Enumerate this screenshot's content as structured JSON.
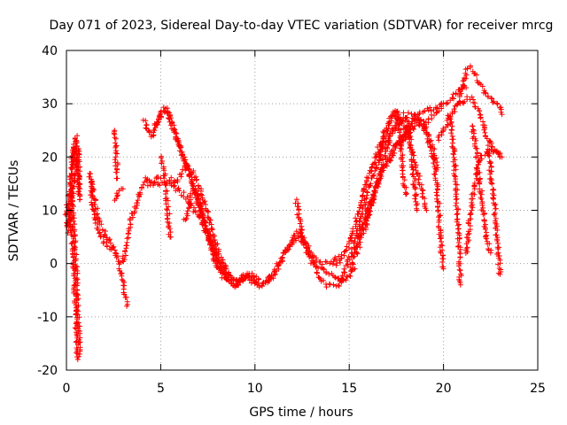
{
  "chart_data": {
    "type": "scatter",
    "title": "Day 071 of 2023, Sidereal Day-to-day VTEC variation (SDTVAR) for receiver mrcg",
    "xlabel": "GPS time / hours",
    "ylabel": "SDTVAR / TECUs",
    "xlim": [
      0,
      25
    ],
    "ylim": [
      -20,
      40
    ],
    "xticks": [
      0,
      5,
      10,
      15,
      20,
      25
    ],
    "yticks": [
      -20,
      -10,
      0,
      10,
      20,
      30,
      40
    ],
    "grid": true,
    "marker": "+",
    "color": "#ff0000",
    "tracks": [
      [
        [
          0.0,
          7
        ],
        [
          0.1,
          9
        ],
        [
          0.2,
          12
        ],
        [
          0.3,
          17
        ],
        [
          0.4,
          21
        ],
        [
          0.5,
          24
        ],
        [
          0.55,
          22
        ]
      ],
      [
        [
          0.0,
          9
        ],
        [
          0.1,
          12
        ],
        [
          0.2,
          15
        ],
        [
          0.3,
          19
        ],
        [
          0.4,
          22
        ],
        [
          0.5,
          20
        ],
        [
          0.6,
          17
        ],
        [
          0.7,
          12
        ]
      ],
      [
        [
          0.1,
          6
        ],
        [
          0.2,
          9
        ],
        [
          0.3,
          12
        ],
        [
          0.4,
          15
        ],
        [
          0.5,
          18
        ],
        [
          0.6,
          22
        ],
        [
          0.7,
          13
        ]
      ],
      [
        [
          0.2,
          10
        ],
        [
          0.3,
          5
        ],
        [
          0.35,
          2
        ],
        [
          0.4,
          -2
        ],
        [
          0.45,
          -6
        ],
        [
          0.5,
          -10
        ],
        [
          0.55,
          -14
        ],
        [
          0.6,
          -18
        ]
      ],
      [
        [
          0.3,
          12
        ],
        [
          0.4,
          6
        ],
        [
          0.5,
          0
        ],
        [
          0.55,
          -5
        ],
        [
          0.6,
          -9
        ],
        [
          0.65,
          -13
        ],
        [
          0.7,
          -17
        ]
      ],
      [
        [
          1.2,
          17
        ],
        [
          1.3,
          14
        ],
        [
          1.4,
          11
        ],
        [
          1.5,
          9
        ],
        [
          1.6,
          7
        ],
        [
          1.8,
          6
        ],
        [
          2.0,
          4
        ],
        [
          2.3,
          3
        ],
        [
          2.6,
          2
        ]
      ],
      [
        [
          1.3,
          16
        ],
        [
          1.5,
          12
        ],
        [
          1.7,
          8
        ],
        [
          2.0,
          6
        ],
        [
          2.3,
          4
        ],
        [
          2.6,
          2
        ],
        [
          2.8,
          0
        ],
        [
          3.0,
          -3
        ],
        [
          3.2,
          -8
        ]
      ],
      [
        [
          2.5,
          25
        ],
        [
          2.6,
          22
        ],
        [
          2.65,
          19
        ],
        [
          2.7,
          16
        ]
      ],
      [
        [
          2.6,
          12
        ],
        [
          2.8,
          14
        ],
        [
          3.0,
          14
        ]
      ],
      [
        [
          3.0,
          0
        ],
        [
          3.2,
          4
        ],
        [
          3.4,
          8
        ],
        [
          3.6,
          10
        ],
        [
          3.8,
          12
        ],
        [
          4.0,
          14
        ],
        [
          4.2,
          15
        ],
        [
          4.4,
          15
        ],
        [
          4.6,
          15
        ],
        [
          4.8,
          16
        ],
        [
          5.0,
          16
        ]
      ],
      [
        [
          4.1,
          27
        ],
        [
          4.3,
          25
        ],
        [
          4.5,
          24
        ],
        [
          4.7,
          26
        ],
        [
          4.9,
          27
        ],
        [
          5.1,
          29
        ],
        [
          5.3,
          29
        ],
        [
          5.5,
          27
        ],
        [
          5.8,
          24
        ],
        [
          6.1,
          21
        ],
        [
          6.4,
          18
        ],
        [
          6.7,
          15
        ],
        [
          7.0,
          12
        ],
        [
          7.3,
          8
        ],
        [
          7.6,
          4
        ],
        [
          7.9,
          0
        ],
        [
          8.2,
          -2
        ],
        [
          8.5,
          -3
        ]
      ],
      [
        [
          4.6,
          24
        ],
        [
          4.8,
          26
        ],
        [
          5.0,
          28
        ],
        [
          5.2,
          29
        ],
        [
          5.4,
          28
        ],
        [
          5.6,
          26
        ],
        [
          5.9,
          23
        ],
        [
          6.2,
          20
        ],
        [
          6.5,
          17
        ],
        [
          6.8,
          14
        ],
        [
          7.1,
          11
        ],
        [
          7.4,
          7
        ],
        [
          7.7,
          3
        ],
        [
          8.0,
          0
        ],
        [
          8.3,
          -2
        ],
        [
          8.6,
          -3
        ]
      ],
      [
        [
          4.2,
          16
        ],
        [
          4.5,
          15
        ],
        [
          4.8,
          15
        ],
        [
          5.1,
          15
        ],
        [
          5.4,
          15
        ],
        [
          5.8,
          14
        ],
        [
          6.2,
          13
        ],
        [
          6.6,
          11
        ],
        [
          7.0,
          9
        ],
        [
          7.4,
          6
        ],
        [
          7.8,
          3
        ],
        [
          8.2,
          0
        ],
        [
          8.6,
          -2
        ],
        [
          9.0,
          -3
        ],
        [
          9.4,
          -3
        ],
        [
          9.8,
          -2
        ],
        [
          10.2,
          -3
        ]
      ],
      [
        [
          5.5,
          16
        ],
        [
          5.8,
          15
        ],
        [
          6.1,
          17
        ],
        [
          6.4,
          18
        ],
        [
          6.7,
          17
        ],
        [
          7.0,
          15
        ],
        [
          7.3,
          12
        ],
        [
          7.6,
          8
        ],
        [
          7.9,
          4
        ],
        [
          8.2,
          1
        ],
        [
          8.5,
          -1
        ],
        [
          8.8,
          -3
        ],
        [
          9.1,
          -4
        ],
        [
          9.4,
          -3
        ]
      ],
      [
        [
          5.0,
          20
        ],
        [
          5.2,
          17
        ],
        [
          5.3,
          13
        ],
        [
          5.4,
          9
        ],
        [
          5.5,
          5
        ]
      ],
      [
        [
          6.3,
          8
        ],
        [
          6.5,
          11
        ],
        [
          6.7,
          14
        ],
        [
          6.9,
          12
        ],
        [
          7.1,
          10
        ],
        [
          7.4,
          7
        ],
        [
          7.7,
          4
        ],
        [
          8.0,
          1
        ],
        [
          8.3,
          -1
        ],
        [
          8.6,
          -3
        ],
        [
          8.9,
          -4
        ],
        [
          9.2,
          -3
        ]
      ],
      [
        [
          8.6,
          -3
        ],
        [
          8.9,
          -4
        ],
        [
          9.2,
          -3
        ],
        [
          9.5,
          -2
        ],
        [
          9.8,
          -3
        ],
        [
          10.1,
          -4
        ],
        [
          10.4,
          -4
        ],
        [
          10.7,
          -3
        ],
        [
          11.0,
          -2
        ],
        [
          11.3,
          0
        ],
        [
          11.6,
          2
        ],
        [
          11.9,
          4
        ],
        [
          12.2,
          6
        ],
        [
          12.5,
          5
        ],
        [
          12.8,
          3
        ],
        [
          13.1,
          1
        ],
        [
          13.4,
          0
        ],
        [
          13.7,
          0
        ],
        [
          14.0,
          0
        ],
        [
          14.3,
          1
        ],
        [
          14.6,
          1
        ]
      ],
      [
        [
          9.0,
          -4
        ],
        [
          9.3,
          -3
        ],
        [
          9.6,
          -2
        ],
        [
          9.9,
          -3
        ],
        [
          10.2,
          -4
        ],
        [
          10.5,
          -4
        ],
        [
          10.8,
          -3
        ],
        [
          11.1,
          -1
        ],
        [
          11.4,
          1
        ],
        [
          11.7,
          3
        ],
        [
          12.0,
          4
        ],
        [
          12.3,
          5
        ],
        [
          12.6,
          4
        ],
        [
          12.9,
          2
        ],
        [
          13.2,
          0
        ],
        [
          13.5,
          -1
        ],
        [
          13.8,
          -2
        ],
        [
          14.1,
          -2
        ],
        [
          14.4,
          -3
        ],
        [
          14.7,
          -3
        ]
      ],
      [
        [
          12.2,
          12
        ],
        [
          12.3,
          9
        ],
        [
          12.4,
          7
        ],
        [
          12.5,
          5
        ],
        [
          12.7,
          3
        ],
        [
          12.9,
          1
        ],
        [
          13.1,
          0
        ],
        [
          13.3,
          -2
        ],
        [
          13.5,
          -3
        ],
        [
          13.8,
          -4
        ],
        [
          14.1,
          -4
        ],
        [
          14.4,
          -4
        ],
        [
          14.7,
          -3
        ],
        [
          15.0,
          -2
        ],
        [
          15.3,
          -1
        ]
      ],
      [
        [
          14.3,
          0
        ],
        [
          14.6,
          1
        ],
        [
          14.9,
          3
        ],
        [
          15.2,
          6
        ],
        [
          15.5,
          10
        ],
        [
          15.8,
          14
        ],
        [
          16.1,
          17
        ],
        [
          16.4,
          20
        ],
        [
          16.7,
          23
        ],
        [
          17.0,
          26
        ],
        [
          17.3,
          28
        ],
        [
          17.6,
          28
        ],
        [
          17.9,
          26
        ],
        [
          18.2,
          23
        ],
        [
          18.5,
          19
        ],
        [
          18.8,
          14
        ],
        [
          19.1,
          10
        ]
      ],
      [
        [
          14.6,
          -3
        ],
        [
          14.9,
          0
        ],
        [
          15.2,
          3
        ],
        [
          15.5,
          7
        ],
        [
          15.8,
          11
        ],
        [
          16.1,
          15
        ],
        [
          16.4,
          18
        ],
        [
          16.7,
          21
        ],
        [
          17.0,
          23
        ],
        [
          17.3,
          25
        ],
        [
          17.6,
          26
        ],
        [
          17.9,
          27
        ],
        [
          18.2,
          28
        ],
        [
          18.5,
          28
        ],
        [
          18.8,
          27
        ],
        [
          19.1,
          25
        ],
        [
          19.4,
          22
        ],
        [
          19.7,
          18
        ]
      ],
      [
        [
          15.0,
          -2
        ],
        [
          15.3,
          2
        ],
        [
          15.6,
          6
        ],
        [
          15.9,
          9
        ],
        [
          16.2,
          12
        ],
        [
          16.5,
          15
        ],
        [
          16.8,
          18
        ],
        [
          17.1,
          20
        ],
        [
          17.4,
          22
        ],
        [
          17.7,
          23
        ],
        [
          18.0,
          24
        ],
        [
          18.3,
          25
        ],
        [
          18.6,
          26
        ],
        [
          18.9,
          26
        ],
        [
          19.2,
          27
        ],
        [
          19.5,
          28
        ],
        [
          19.8,
          29
        ],
        [
          20.1,
          30
        ],
        [
          20.4,
          31
        ],
        [
          20.7,
          32
        ],
        [
          21.0,
          33
        ],
        [
          21.2,
          33
        ]
      ],
      [
        [
          15.4,
          2
        ],
        [
          15.7,
          6
        ],
        [
          16.0,
          10
        ],
        [
          16.3,
          13
        ],
        [
          16.6,
          16
        ],
        [
          16.9,
          18
        ],
        [
          17.2,
          20
        ],
        [
          17.5,
          22
        ],
        [
          17.8,
          24
        ],
        [
          18.1,
          26
        ],
        [
          18.4,
          27
        ],
        [
          18.7,
          28
        ],
        [
          19.0,
          29
        ],
        [
          19.3,
          29
        ],
        [
          19.6,
          29
        ],
        [
          19.9,
          30
        ]
      ],
      [
        [
          15.8,
          6
        ],
        [
          16.1,
          10
        ],
        [
          16.4,
          14
        ],
        [
          16.7,
          18
        ],
        [
          17.0,
          22
        ],
        [
          17.3,
          25
        ],
        [
          17.6,
          27
        ],
        [
          17.9,
          28
        ],
        [
          18.1,
          27
        ],
        [
          18.2,
          24
        ],
        [
          18.3,
          21
        ],
        [
          18.4,
          17
        ],
        [
          18.5,
          13
        ],
        [
          18.6,
          10
        ]
      ],
      [
        [
          16.6,
          20
        ],
        [
          16.9,
          24
        ],
        [
          17.2,
          27
        ],
        [
          17.5,
          29
        ],
        [
          17.6,
          27
        ],
        [
          17.7,
          24
        ],
        [
          17.8,
          20
        ],
        [
          17.9,
          16
        ],
        [
          18.0,
          13
        ]
      ],
      [
        [
          17.7,
          22
        ],
        [
          18.0,
          24
        ],
        [
          18.3,
          26
        ],
        [
          18.6,
          27
        ],
        [
          18.9,
          26
        ],
        [
          19.2,
          23
        ],
        [
          19.5,
          19
        ],
        [
          19.7,
          13
        ],
        [
          19.8,
          7
        ],
        [
          19.9,
          2
        ],
        [
          20.0,
          -1
        ]
      ],
      [
        [
          19.7,
          23
        ],
        [
          20.0,
          25
        ],
        [
          20.3,
          27
        ],
        [
          20.6,
          29
        ],
        [
          20.9,
          30
        ],
        [
          21.2,
          31
        ],
        [
          21.5,
          31
        ],
        [
          21.8,
          29
        ],
        [
          22.1,
          26
        ],
        [
          22.4,
          23
        ],
        [
          22.7,
          21
        ],
        [
          23.0,
          20
        ]
      ],
      [
        [
          20.3,
          28
        ],
        [
          20.5,
          23
        ],
        [
          20.6,
          18
        ],
        [
          20.7,
          12
        ],
        [
          20.8,
          6
        ],
        [
          20.85,
          1
        ],
        [
          20.9,
          -4
        ]
      ],
      [
        [
          20.8,
          30
        ],
        [
          21.0,
          33
        ],
        [
          21.3,
          37
        ],
        [
          21.6,
          36
        ],
        [
          21.9,
          34
        ],
        [
          22.2,
          32
        ],
        [
          22.5,
          31
        ],
        [
          22.8,
          30
        ],
        [
          23.0,
          29
        ],
        [
          23.1,
          28
        ]
      ],
      [
        [
          21.2,
          2
        ],
        [
          21.4,
          8
        ],
        [
          21.6,
          14
        ],
        [
          21.8,
          18
        ],
        [
          22.0,
          20
        ],
        [
          22.3,
          21
        ],
        [
          22.6,
          21
        ],
        [
          22.9,
          21
        ],
        [
          23.1,
          20
        ]
      ],
      [
        [
          21.5,
          26
        ],
        [
          21.7,
          22
        ],
        [
          21.9,
          16
        ],
        [
          22.1,
          10
        ],
        [
          22.3,
          5
        ],
        [
          22.5,
          2
        ]
      ],
      [
        [
          22.4,
          22
        ],
        [
          22.5,
          17
        ],
        [
          22.7,
          11
        ],
        [
          22.8,
          6
        ],
        [
          22.9,
          2
        ],
        [
          23.0,
          -2
        ]
      ]
    ]
  }
}
